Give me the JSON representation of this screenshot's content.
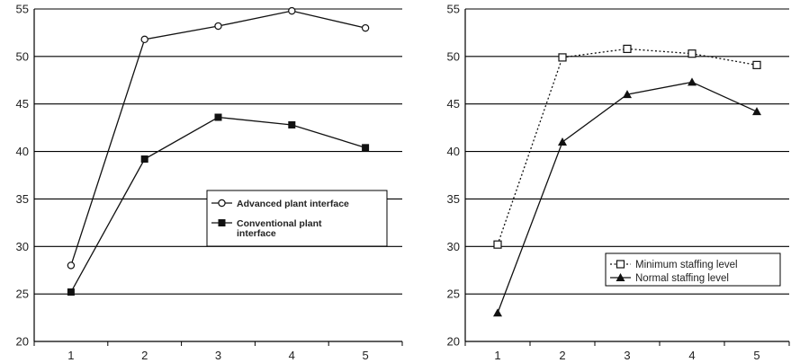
{
  "chart_data": [
    {
      "type": "line",
      "title": "",
      "xlabel": "",
      "ylabel": "",
      "categories": [
        "1",
        "2",
        "3",
        "4",
        "5"
      ],
      "ylim": [
        20,
        55
      ],
      "yticks": [
        "20",
        "25",
        "30",
        "35",
        "40",
        "45",
        "50",
        "55"
      ],
      "grid": "horizontal",
      "legend_position": "right-middle",
      "series": [
        {
          "name": "Advanced plant interface",
          "marker": "open-circle",
          "line_style": "solid",
          "values": [
            28.0,
            51.8,
            53.2,
            54.8,
            53.0
          ]
        },
        {
          "name": "Conventional plant interface",
          "marker": "filled-square",
          "line_style": "solid",
          "values": [
            25.2,
            39.2,
            43.6,
            42.8,
            40.4
          ]
        }
      ]
    },
    {
      "type": "line",
      "title": "",
      "xlabel": "",
      "ylabel": "",
      "categories": [
        "1",
        "2",
        "3",
        "4",
        "5"
      ],
      "ylim": [
        20,
        55
      ],
      "yticks": [
        "20",
        "25",
        "30",
        "35",
        "40",
        "45",
        "50",
        "55"
      ],
      "grid": "horizontal",
      "legend_position": "bottom-right",
      "series": [
        {
          "name": "Minimum staffing level",
          "marker": "open-square",
          "line_style": "dotted",
          "values": [
            30.2,
            49.9,
            50.8,
            50.3,
            49.1
          ]
        },
        {
          "name": "Normal staffing level",
          "marker": "filled-triangle",
          "line_style": "solid",
          "values": [
            23.0,
            41.0,
            46.0,
            47.3,
            44.2
          ]
        }
      ]
    }
  ]
}
